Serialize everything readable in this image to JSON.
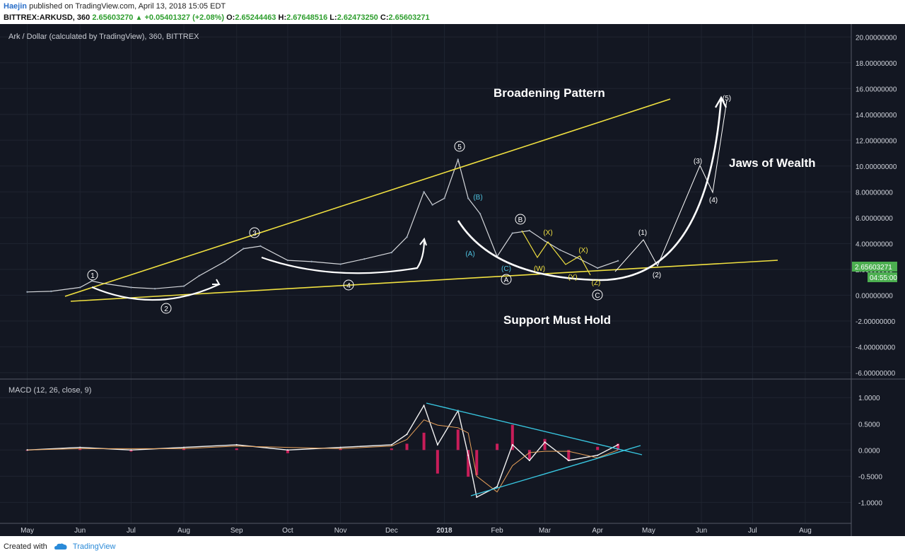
{
  "header": {
    "author": "Haejin",
    "published": "published on TradingView.com, April 13, 2018 15:05 EDT",
    "symbol": "BITTREX:ARKUSD, 360",
    "last": "2.65603270",
    "triangle": "▲",
    "change": "+0.05401327 (+2.08%)",
    "o_label": "O:",
    "o_value": "2.65244463",
    "h_label": "H:",
    "h_value": "2.67648516",
    "l_label": "L:",
    "l_value": "2.62473250",
    "c_label": "C:",
    "c_value": "2.65603271"
  },
  "chart_data": [
    {
      "type": "line",
      "title": "Ark / Dollar (calculated by TradingView), 360, BITTREX",
      "x_ticks": [
        "May",
        "Jun",
        "Jul",
        "Aug",
        "Sep",
        "Oct",
        "Nov",
        "Dec",
        "2018",
        "Feb",
        "Mar",
        "Apr",
        "May",
        "Jun",
        "Jul",
        "Aug"
      ],
      "y_ticks": [
        "20.00000000",
        "18.00000000",
        "16.00000000",
        "14.00000000",
        "12.00000000",
        "10.00000000",
        "8.00000000",
        "6.00000000",
        "4.00000000",
        "2.00000000",
        "0.00000000",
        "-2.00000000",
        "-4.00000000",
        "-6.00000000"
      ],
      "ylim": [
        -6.5,
        21
      ],
      "series": [
        {
          "x": [
            "2017-05-01",
            "2017-05-15",
            "2017-06-01",
            "2017-06-08",
            "2017-06-15",
            "2017-07-01",
            "2017-07-15",
            "2017-08-01",
            "2017-08-10",
            "2017-08-25",
            "2017-09-05",
            "2017-09-15",
            "2017-10-01",
            "2017-10-15",
            "2017-11-01",
            "2017-11-15",
            "2017-12-01",
            "2017-12-10",
            "2017-12-20",
            "2017-12-25",
            "2018-01-01",
            "2018-01-09",
            "2018-01-15",
            "2018-01-22",
            "2018-02-01",
            "2018-02-10",
            "2018-02-20",
            "2018-03-01",
            "2018-03-10",
            "2018-03-20",
            "2018-04-01",
            "2018-04-13"
          ],
          "values": [
            0.25,
            0.3,
            0.6,
            1.1,
            0.9,
            0.6,
            0.5,
            0.7,
            1.5,
            2.6,
            3.6,
            3.8,
            2.7,
            2.6,
            2.4,
            2.8,
            3.3,
            4.5,
            8.0,
            7.0,
            7.5,
            10.5,
            7.5,
            6.3,
            3.0,
            4.8,
            5.0,
            4.2,
            3.5,
            2.9,
            2.1,
            2.66
          ]
        }
      ],
      "last_price_label": "2.65603271",
      "countdown_label": "04:55:00",
      "annotations": {
        "broadening": "Broadening Pattern",
        "jaws": "Jaws of Wealth",
        "support": "Support Must Hold",
        "w1": "1",
        "w2": "2",
        "w3": "3",
        "w4": "4",
        "w5": "5",
        "wA": "A",
        "wB": "B",
        "wC": "C",
        "sA": "(A)",
        "sB": "(B)",
        "sC": "(C)",
        "yX1": "(X)",
        "yX2": "(X)",
        "yW": "(W)",
        "yY": "(Y)",
        "yZ": "(Z)",
        "p1": "(1)",
        "p2": "(2)",
        "p3": "(3)",
        "p4": "(4)",
        "p5": "(5)"
      }
    },
    {
      "type": "line",
      "title": "MACD (12, 26, close, 9)",
      "y_ticks": [
        "1.0000",
        "0.5000",
        "0.0000",
        "-0.5000",
        "-1.0000"
      ],
      "ylim": [
        -1.4,
        1.3
      ],
      "series": [
        {
          "x": [
            "2017-05-01",
            "2017-06-01",
            "2017-07-01",
            "2017-08-01",
            "2017-09-01",
            "2017-10-01",
            "2017-11-01",
            "2017-12-01",
            "2017-12-10",
            "2017-12-20",
            "2017-12-28",
            "2018-01-09",
            "2018-01-15",
            "2018-01-20",
            "2018-02-01",
            "2018-02-10",
            "2018-02-20",
            "2018-03-01",
            "2018-03-15",
            "2018-04-01",
            "2018-04-13"
          ],
          "values": [
            0.0,
            0.05,
            0.0,
            0.05,
            0.1,
            0.0,
            0.05,
            0.1,
            0.3,
            0.85,
            0.1,
            0.75,
            -0.1,
            -0.9,
            -0.7,
            0.1,
            -0.2,
            0.15,
            -0.2,
            -0.1,
            0.1
          ]
        }
      ]
    }
  ],
  "footer": {
    "created": "Created with",
    "brand": "TradingView"
  }
}
